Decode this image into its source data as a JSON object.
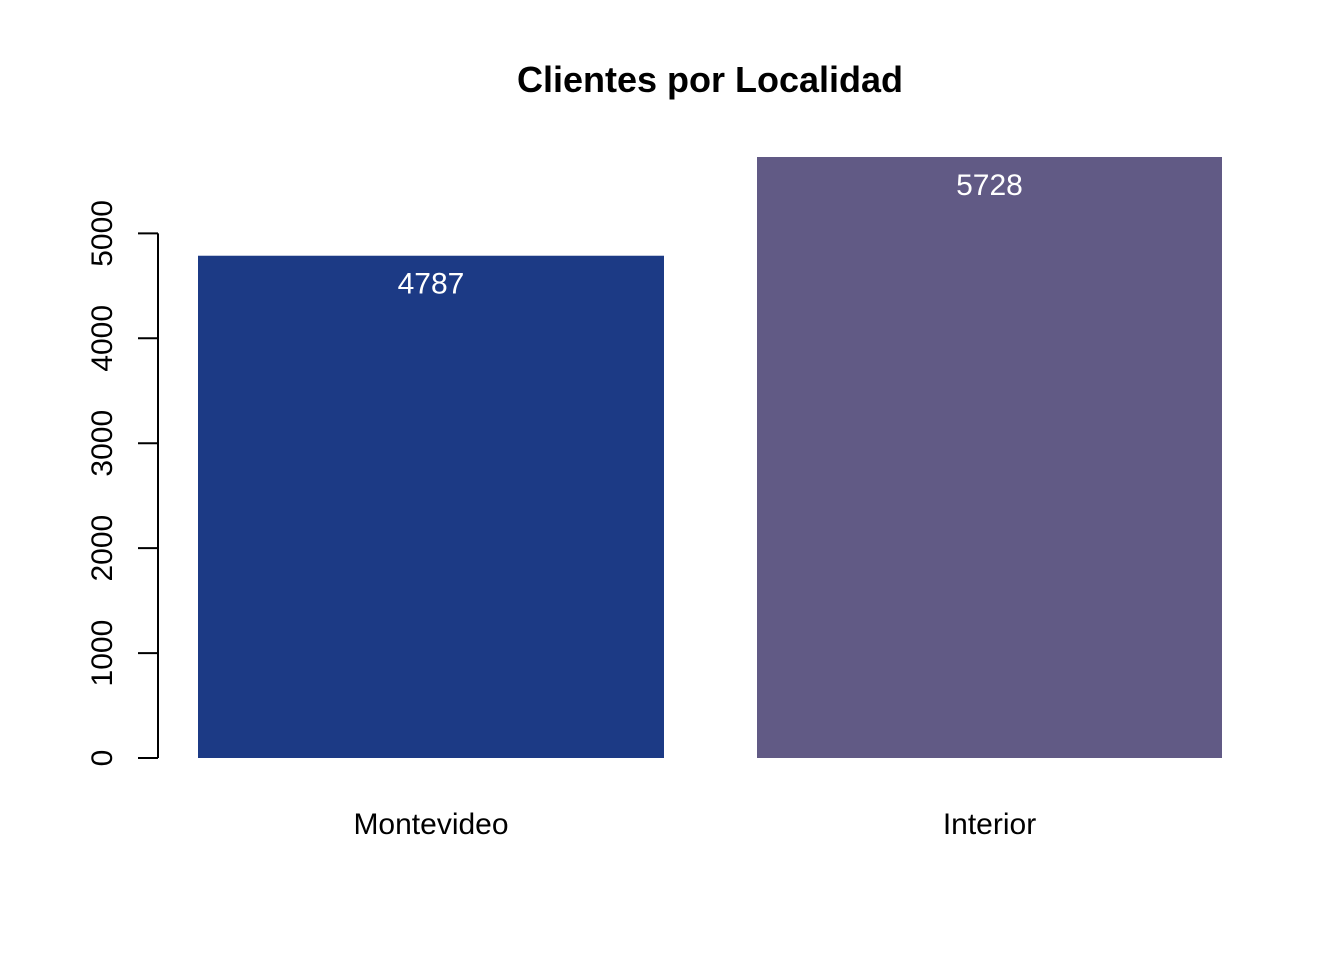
{
  "chart_data": {
    "type": "bar",
    "title": "Clientes por Localidad",
    "xlabel": "",
    "ylabel": "",
    "categories": [
      "Montevideo",
      "Interior"
    ],
    "values": [
      4787,
      5728
    ],
    "value_labels": [
      "4787",
      "5728"
    ],
    "colors": [
      "#1c3a85",
      "#615a85"
    ],
    "value_label_color": "#ffffff",
    "ylim": [
      0,
      5728
    ],
    "yticks": [
      0,
      1000,
      2000,
      3000,
      4000,
      5000
    ],
    "ytick_labels": [
      "0",
      "1000",
      "2000",
      "3000",
      "4000",
      "5000"
    ],
    "grid": false,
    "legend": "none"
  }
}
